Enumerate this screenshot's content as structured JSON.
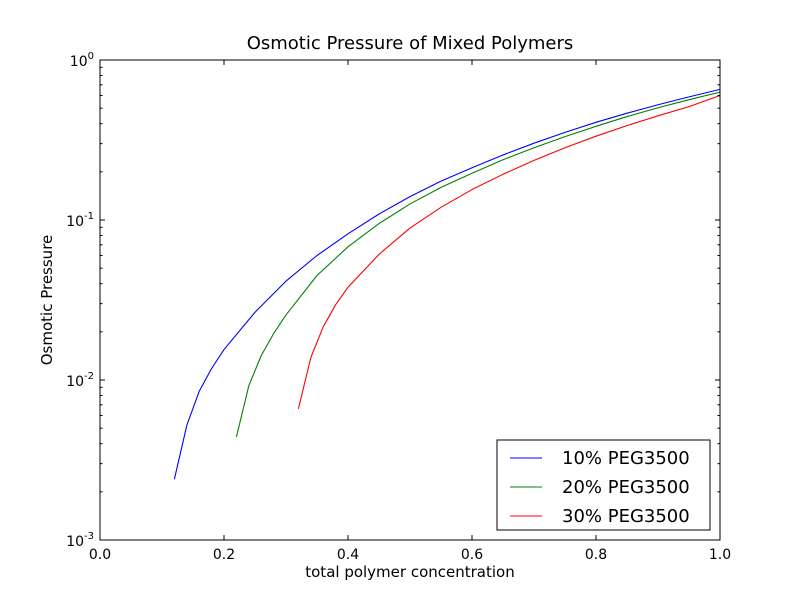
{
  "chart_data": {
    "type": "line",
    "title": "Osmotic Pressure of Mixed Polymers",
    "xlabel": "total polymer concentration",
    "ylabel": "Osmotic Pressure",
    "xlim": [
      0.0,
      1.0
    ],
    "ylim": [
      0.001,
      1.0
    ],
    "yscale": "log",
    "grid": false,
    "legend_position": "lower-right",
    "x_ticks": [
      {
        "value": 0.0,
        "label": "0.0"
      },
      {
        "value": 0.2,
        "label": "0.2"
      },
      {
        "value": 0.4,
        "label": "0.4"
      },
      {
        "value": 0.6,
        "label": "0.6"
      },
      {
        "value": 0.8,
        "label": "0.8"
      },
      {
        "value": 1.0,
        "label": "1.0"
      }
    ],
    "y_ticks": [
      {
        "value": 0.001,
        "base": "10",
        "exp": "-3"
      },
      {
        "value": 0.01,
        "base": "10",
        "exp": "-2"
      },
      {
        "value": 0.1,
        "base": "10",
        "exp": "-1"
      },
      {
        "value": 1.0,
        "base": "10",
        "exp": "0"
      }
    ],
    "series": [
      {
        "name": "10% PEG3500",
        "color": "#0000ff",
        "x": [
          0.12,
          0.14,
          0.16,
          0.18,
          0.2,
          0.25,
          0.3,
          0.35,
          0.4,
          0.45,
          0.5,
          0.55,
          0.6,
          0.65,
          0.7,
          0.75,
          0.8,
          0.85,
          0.9,
          0.95,
          1.0
        ],
        "y": [
          0.0024,
          0.0052,
          0.0085,
          0.0118,
          0.0155,
          0.0265,
          0.0415,
          0.06,
          0.082,
          0.109,
          0.14,
          0.175,
          0.212,
          0.255,
          0.302,
          0.353,
          0.408,
          0.465,
          0.525,
          0.588,
          0.655
        ]
      },
      {
        "name": "20% PEG3500",
        "color": "#008000",
        "x": [
          0.22,
          0.24,
          0.26,
          0.28,
          0.3,
          0.35,
          0.4,
          0.45,
          0.5,
          0.55,
          0.6,
          0.65,
          0.7,
          0.75,
          0.8,
          0.85,
          0.9,
          0.95,
          1.0
        ],
        "y": [
          0.0044,
          0.0092,
          0.0142,
          0.0195,
          0.0255,
          0.045,
          0.068,
          0.095,
          0.126,
          0.16,
          0.196,
          0.238,
          0.283,
          0.332,
          0.385,
          0.443,
          0.503,
          0.565,
          0.63
        ]
      },
      {
        "name": "30% PEG3500",
        "color": "#ff0000",
        "x": [
          0.32,
          0.34,
          0.36,
          0.38,
          0.4,
          0.45,
          0.5,
          0.55,
          0.6,
          0.65,
          0.7,
          0.75,
          0.8,
          0.85,
          0.9,
          0.95,
          1.0
        ],
        "y": [
          0.0066,
          0.0138,
          0.0215,
          0.0295,
          0.038,
          0.061,
          0.089,
          0.12,
          0.155,
          0.193,
          0.236,
          0.283,
          0.334,
          0.389,
          0.448,
          0.511,
          0.6
        ]
      }
    ]
  }
}
